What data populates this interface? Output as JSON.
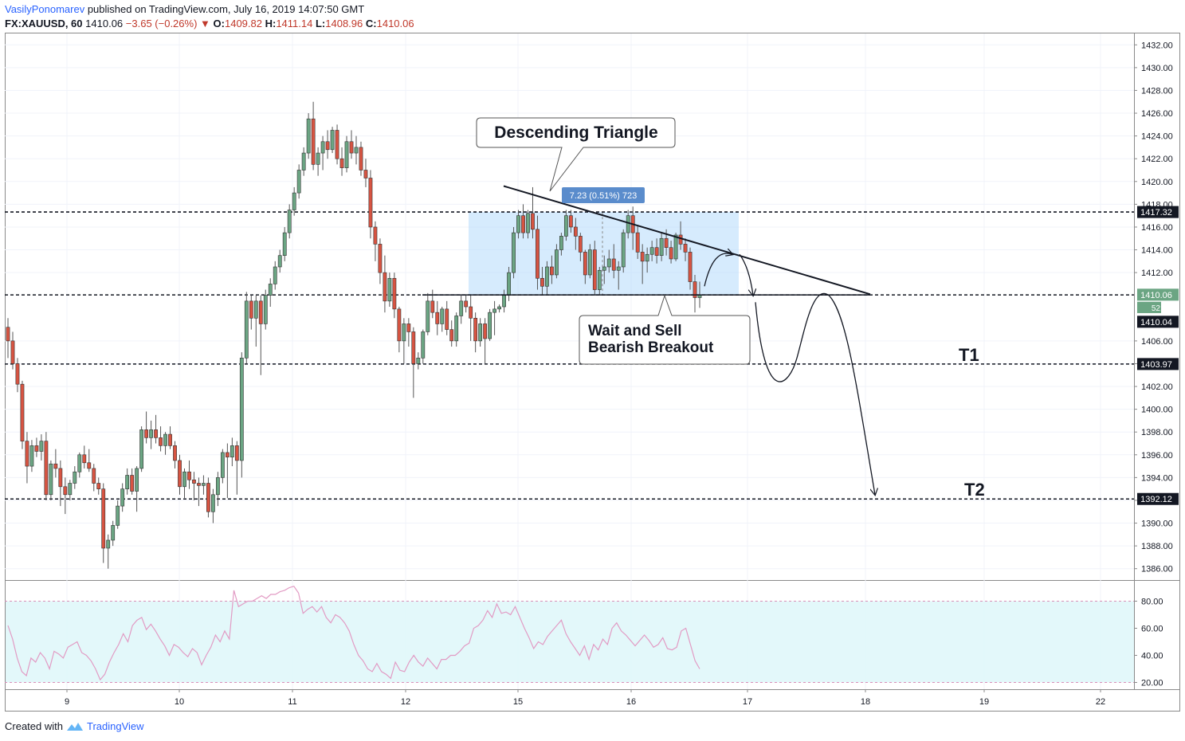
{
  "header": {
    "author": "VasilyPonomarev",
    "published": "published on TradingView.com, July 16, 2019 14:07:50 GMT",
    "symbol": "FX:XAUUSD, 60",
    "last": "1410.06",
    "change": "−3.65 (−0.26%)",
    "o_label": "O:",
    "o": "1409.82",
    "h_label": "H:",
    "h": "1411.14",
    "l_label": "L:",
    "l": "1408.96",
    "c_label": "C:",
    "c": "1410.06"
  },
  "footer": {
    "created_with": "Created with",
    "brand": "TradingView"
  },
  "colors": {
    "up": "#6ba583",
    "down": "#d75442",
    "rsi": "#e29bc4",
    "box": "#bbdefb"
  },
  "chart_data": {
    "type": "candlestick",
    "price_axis": {
      "ylim": [
        1385,
        1433
      ],
      "ticks": [
        "1432.00",
        "1430.00",
        "1428.00",
        "1426.00",
        "1424.00",
        "1422.00",
        "1420.00",
        "1418.00",
        "1416.00",
        "1414.00",
        "1412.00",
        "1410.06",
        "1406.00",
        "1404.00",
        "1402.00",
        "1400.00",
        "1398.00",
        "1396.00",
        "1394.00",
        "1392.00",
        "1390.00",
        "1388.00",
        "1386.00"
      ],
      "tick_values": [
        1432,
        1430,
        1428,
        1426,
        1424,
        1422,
        1420,
        1418,
        1416,
        1414,
        1412,
        1410.06,
        1406,
        1404,
        1402,
        1400,
        1398,
        1396,
        1394,
        1392,
        1390,
        1388,
        1386
      ]
    },
    "x_axis": {
      "ticks": [
        "9",
        "10",
        "11",
        "12",
        "15",
        "16",
        "17",
        "18",
        "19",
        "22"
      ]
    },
    "price_labels": [
      {
        "value": 1417.32,
        "text": "1417.32",
        "style": "dark"
      },
      {
        "value": 1410.06,
        "text": "1410.06",
        "style": "green"
      },
      {
        "value": 1410.06,
        "text": "52:11",
        "style": "green-small"
      },
      {
        "value": 1410.04,
        "text": "1410.04",
        "style": "dark"
      },
      {
        "value": 1403.97,
        "text": "1403.97",
        "style": "dark"
      },
      {
        "value": 1392.12,
        "text": "1392.12",
        "style": "dark"
      }
    ],
    "levels": [
      1417.32,
      1410.04,
      1403.97,
      1392.12
    ],
    "annotations": {
      "triangle_title": "Descending Triangle",
      "measure": "7.23 (0.51%) 723",
      "wait_line1": "Wait and Sell",
      "wait_line2": "Bearish Breakout",
      "t1": "T1",
      "t2": "T2"
    },
    "candles": [
      [
        1407.2,
        1408,
        1404.5,
        1406
      ],
      [
        1406,
        1406.8,
        1403.5,
        1404
      ],
      [
        1404,
        1404.5,
        1401.5,
        1402.2
      ],
      [
        1402.2,
        1402.5,
        1396.5,
        1397.2
      ],
      [
        1397.2,
        1398,
        1393.5,
        1395
      ],
      [
        1395,
        1397.3,
        1394.5,
        1396.8
      ],
      [
        1396.8,
        1397.5,
        1395.8,
        1396.3
      ],
      [
        1396.3,
        1397.8,
        1395.5,
        1397.2
      ],
      [
        1397.2,
        1398,
        1392,
        1392.5
      ],
      [
        1392.5,
        1395.5,
        1392,
        1395.2
      ],
      [
        1395.2,
        1396.5,
        1394,
        1394.8
      ],
      [
        1394.8,
        1395.5,
        1391.5,
        1393.2
      ],
      [
        1393.2,
        1394,
        1390.8,
        1392.5
      ],
      [
        1392.5,
        1393.8,
        1392,
        1393.5
      ],
      [
        1393.5,
        1395,
        1393,
        1394.5
      ],
      [
        1394.5,
        1396.2,
        1394,
        1396
      ],
      [
        1396,
        1396.8,
        1394.8,
        1395.3
      ],
      [
        1395.3,
        1396.5,
        1394.5,
        1394.8
      ],
      [
        1394.8,
        1395.2,
        1392.8,
        1393.5
      ],
      [
        1393.5,
        1394,
        1392.5,
        1393
      ],
      [
        1393,
        1393.5,
        1386.5,
        1387.8
      ],
      [
        1387.8,
        1389,
        1386,
        1388.5
      ],
      [
        1388.5,
        1390.2,
        1388,
        1389.8
      ],
      [
        1389.8,
        1392,
        1389.5,
        1391.5
      ],
      [
        1391.5,
        1393.5,
        1391,
        1393
      ],
      [
        1393,
        1394.8,
        1392.5,
        1394.2
      ],
      [
        1394.2,
        1394.8,
        1392.5,
        1392.8
      ],
      [
        1392.8,
        1395,
        1391,
        1394.8
      ],
      [
        1394.8,
        1398.5,
        1394.5,
        1398.2
      ],
      [
        1398.2,
        1399.8,
        1397,
        1397.5
      ],
      [
        1397.5,
        1399,
        1396.5,
        1398.2
      ],
      [
        1398.2,
        1399.5,
        1397,
        1397.5
      ],
      [
        1397.5,
        1398.5,
        1396.3,
        1396.8
      ],
      [
        1396.8,
        1398,
        1396,
        1397.8
      ],
      [
        1397.8,
        1398.5,
        1396.5,
        1396.8
      ],
      [
        1396.8,
        1397.2,
        1394.8,
        1395.5
      ],
      [
        1395.5,
        1396,
        1392.5,
        1393.2
      ],
      [
        1393.2,
        1394.8,
        1392.2,
        1394.5
      ],
      [
        1394.5,
        1395.5,
        1393,
        1393.8
      ],
      [
        1393.8,
        1394.5,
        1392,
        1393.5
      ],
      [
        1393.5,
        1394,
        1391.5,
        1393.3
      ],
      [
        1393.3,
        1394.2,
        1392.5,
        1393.5
      ],
      [
        1393.5,
        1394,
        1390.5,
        1391
      ],
      [
        1391,
        1393,
        1390,
        1392.5
      ],
      [
        1392.5,
        1394.5,
        1391.5,
        1394
      ],
      [
        1394,
        1396.5,
        1393.5,
        1396.2
      ],
      [
        1396.2,
        1397,
        1392.2,
        1395.8
      ],
      [
        1395.8,
        1397.5,
        1395,
        1396.8
      ],
      [
        1396.8,
        1397.2,
        1392.5,
        1395.5
      ],
      [
        1395.5,
        1405,
        1394,
        1404.5
      ],
      [
        1404.5,
        1410.3,
        1404,
        1409.5
      ],
      [
        1409.5,
        1410,
        1407,
        1408
      ],
      [
        1408,
        1410,
        1405.5,
        1409.5
      ],
      [
        1409.5,
        1410,
        1403,
        1407.5
      ],
      [
        1407.5,
        1410.5,
        1407,
        1410
      ],
      [
        1410,
        1411.5,
        1409,
        1411
      ],
      [
        1411,
        1413,
        1410.5,
        1412.5
      ],
      [
        1412.5,
        1414,
        1412,
        1413.5
      ],
      [
        1413.5,
        1416,
        1413,
        1415.5
      ],
      [
        1415.5,
        1418,
        1415,
        1417.5
      ],
      [
        1417.5,
        1419.5,
        1417,
        1419
      ],
      [
        1419,
        1421.5,
        1418.5,
        1421
      ],
      [
        1421,
        1423,
        1420.5,
        1422.5
      ],
      [
        1422.5,
        1426,
        1422,
        1425.5
      ],
      [
        1425.5,
        1427,
        1421,
        1421.5
      ],
      [
        1421.5,
        1423,
        1420.5,
        1422.5
      ],
      [
        1422.5,
        1424,
        1421,
        1423.5
      ],
      [
        1423.5,
        1424.5,
        1422,
        1422.8
      ],
      [
        1422.8,
        1424.8,
        1422.5,
        1424.5
      ],
      [
        1424.5,
        1425,
        1421.5,
        1422
      ],
      [
        1422,
        1423,
        1420.5,
        1421.2
      ],
      [
        1421.2,
        1424,
        1420.8,
        1423.5
      ],
      [
        1423.5,
        1424.5,
        1422,
        1422.5
      ],
      [
        1422.5,
        1424,
        1421.5,
        1423
      ],
      [
        1423,
        1423.5,
        1420.5,
        1421
      ],
      [
        1421,
        1422,
        1419.5,
        1420.3
      ],
      [
        1420.3,
        1421,
        1415,
        1416
      ],
      [
        1416,
        1416.5,
        1413,
        1414.5
      ],
      [
        1414.5,
        1415,
        1411,
        1412
      ],
      [
        1412,
        1413.5,
        1408.5,
        1409.5
      ],
      [
        1409.5,
        1412,
        1409,
        1411.5
      ],
      [
        1411.5,
        1412,
        1408,
        1408.8
      ],
      [
        1408.8,
        1409,
        1405,
        1406
      ],
      [
        1406,
        1408,
        1404,
        1407.5
      ],
      [
        1407.5,
        1408,
        1405.5,
        1406.8
      ],
      [
        1406.8,
        1407.2,
        1401,
        1404
      ],
      [
        1404,
        1405,
        1403.5,
        1404.5
      ],
      [
        1404.5,
        1407,
        1404,
        1406.8
      ],
      [
        1406.8,
        1410.2,
        1406.5,
        1409.5
      ],
      [
        1409.5,
        1410.5,
        1408,
        1408.5
      ],
      [
        1408.5,
        1409.5,
        1406.5,
        1407.5
      ],
      [
        1407.5,
        1409,
        1406.8,
        1408.8
      ],
      [
        1408.8,
        1409.5,
        1406.5,
        1407
      ],
      [
        1407,
        1407.8,
        1405.5,
        1406
      ],
      [
        1406,
        1408.5,
        1405.5,
        1408.2
      ],
      [
        1408.2,
        1410,
        1407.5,
        1409.5
      ],
      [
        1409.5,
        1410,
        1408.5,
        1409
      ],
      [
        1409,
        1410,
        1406,
        1408
      ],
      [
        1408,
        1408.5,
        1405,
        1406
      ],
      [
        1406,
        1408,
        1405.5,
        1407.5
      ],
      [
        1407.5,
        1408,
        1404,
        1406.2
      ],
      [
        1406.2,
        1408.8,
        1406,
        1408.5
      ],
      [
        1408.5,
        1409.5,
        1406.5,
        1408.8
      ],
      [
        1408.8,
        1409.2,
        1408.5,
        1409
      ],
      [
        1409,
        1410.5,
        1408.5,
        1410
      ],
      [
        1410,
        1412.5,
        1409.5,
        1412
      ],
      [
        1412,
        1416,
        1411.5,
        1415.5
      ],
      [
        1415.5,
        1417.5,
        1415,
        1417
      ],
      [
        1417,
        1418,
        1415,
        1415.5
      ],
      [
        1415.5,
        1417.5,
        1415,
        1417.2
      ],
      [
        1417.2,
        1419.5,
        1415,
        1415.8
      ],
      [
        1415.8,
        1417,
        1410.5,
        1411.5
      ],
      [
        1411.5,
        1412.5,
        1410,
        1410.8
      ],
      [
        1410.8,
        1413,
        1410,
        1412.5
      ],
      [
        1412.5,
        1413.5,
        1411,
        1411.8
      ],
      [
        1411.8,
        1414.5,
        1411.5,
        1414
      ],
      [
        1414,
        1415.5,
        1413.5,
        1415.2
      ],
      [
        1415.2,
        1417.5,
        1414.8,
        1417
      ],
      [
        1417,
        1417.5,
        1415.5,
        1416
      ],
      [
        1416,
        1416.8,
        1414,
        1415.2
      ],
      [
        1415.2,
        1415.5,
        1413,
        1413.8
      ],
      [
        1413.8,
        1414,
        1411,
        1411.8
      ],
      [
        1411.8,
        1414.5,
        1411.5,
        1414
      ],
      [
        1414,
        1414.8,
        1410,
        1410.5
      ],
      [
        1410.5,
        1412.5,
        1410,
        1412.2
      ],
      [
        1412.2,
        1413.5,
        1411,
        1412.5
      ],
      [
        1412.5,
        1414,
        1412,
        1413.2
      ],
      [
        1413.2,
        1414.5,
        1411.5,
        1412.2
      ],
      [
        1412.2,
        1413,
        1410.5,
        1412.5
      ],
      [
        1412.5,
        1415.8,
        1412,
        1415.5
      ],
      [
        1415.5,
        1417.5,
        1415,
        1417
      ],
      [
        1417,
        1417.8,
        1414,
        1415.5
      ],
      [
        1415.5,
        1416.2,
        1413.2,
        1413.8
      ],
      [
        1413.8,
        1414.5,
        1411,
        1413
      ],
      [
        1413,
        1414.2,
        1412,
        1413.6
      ],
      [
        1413.6,
        1414.8,
        1413,
        1414.2
      ],
      [
        1414.2,
        1415,
        1412.8,
        1413.5
      ],
      [
        1413.5,
        1415.5,
        1413,
        1415
      ],
      [
        1415,
        1415.8,
        1413.5,
        1414.2
      ],
      [
        1414.2,
        1414.8,
        1412.8,
        1413.2
      ],
      [
        1413.2,
        1415.5,
        1413,
        1415.3
      ],
      [
        1415.3,
        1416.5,
        1414,
        1414.5
      ],
      [
        1414.5,
        1415,
        1413,
        1413.8
      ],
      [
        1413.8,
        1414.2,
        1410.5,
        1411.2
      ],
      [
        1411.2,
        1411.8,
        1408.5,
        1409.8
      ],
      [
        1409.8,
        1411.2,
        1408.9,
        1410.06
      ]
    ],
    "rsi": {
      "ylim": [
        15,
        95
      ],
      "ticks": [
        "80.00",
        "60.00",
        "40.00",
        "20.00"
      ],
      "tick_values": [
        80,
        60,
        40,
        20
      ],
      "band": [
        20,
        80
      ],
      "values": [
        62,
        52,
        38,
        28,
        25,
        38,
        35,
        42,
        38,
        30,
        43,
        41,
        38,
        46,
        48,
        50,
        42,
        40,
        36,
        30,
        22,
        26,
        35,
        42,
        48,
        56,
        50,
        62,
        66,
        68,
        59,
        63,
        58,
        52,
        47,
        40,
        48,
        46,
        42,
        39,
        45,
        42,
        33,
        40,
        46,
        55,
        50,
        58,
        52,
        88,
        76,
        78,
        80,
        80,
        82,
        84,
        82,
        85,
        85,
        87,
        88,
        90,
        91,
        86,
        71,
        74,
        76,
        72,
        76,
        68,
        64,
        70,
        68,
        64,
        58,
        48,
        40,
        36,
        30,
        28,
        34,
        28,
        26,
        23,
        35,
        29,
        28,
        35,
        40,
        35,
        32,
        38,
        34,
        30,
        37,
        37,
        40,
        40,
        43,
        47,
        49,
        60,
        62,
        66,
        73,
        68,
        78,
        71,
        72,
        70,
        76,
        68,
        60,
        53,
        45,
        50,
        48,
        54,
        58,
        62,
        66,
        56,
        50,
        45,
        40,
        47,
        37,
        48,
        44,
        52,
        48,
        60,
        64,
        58,
        55,
        51,
        47,
        51,
        55,
        51,
        46,
        48,
        53,
        45,
        44,
        46,
        58,
        60,
        48,
        36,
        30
      ]
    }
  }
}
